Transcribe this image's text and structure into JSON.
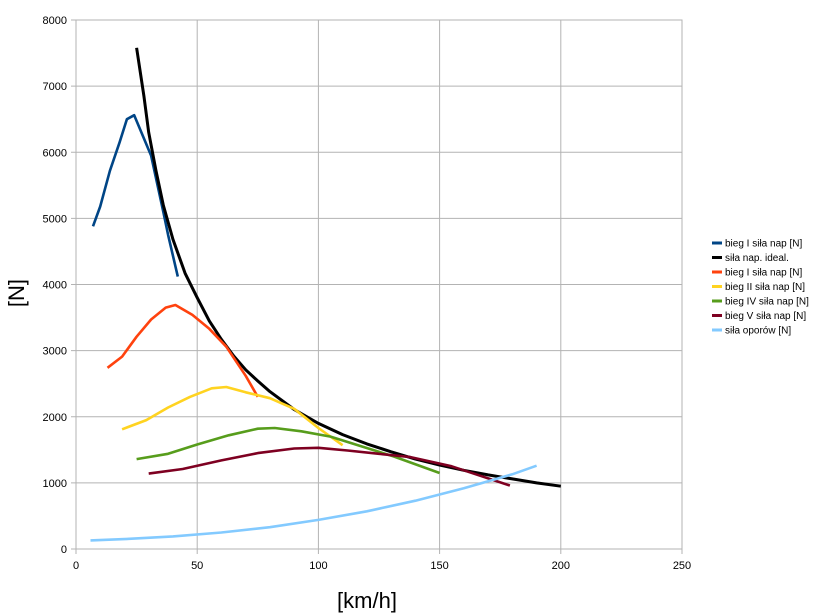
{
  "chart_data": {
    "type": "line",
    "xlabel": "[km/h]",
    "ylabel": "[N]",
    "xlim": [
      0,
      250
    ],
    "ylim": [
      0,
      8000
    ],
    "x_ticks": [
      "0",
      "50",
      "100",
      "150",
      "200",
      "250"
    ],
    "y_ticks": [
      "0",
      "1000",
      "2000",
      "3000",
      "4000",
      "5000",
      "6000",
      "7000",
      "8000"
    ],
    "grid": true,
    "legend_position": "right",
    "series": [
      {
        "name": "bieg I siła nap [N]",
        "color": "#004586",
        "x": [
          7,
          10,
          14,
          18,
          21,
          24,
          31,
          36,
          38,
          42
        ],
        "y": [
          4880,
          5180,
          5720,
          6150,
          6500,
          6560,
          5950,
          5100,
          4750,
          4120
        ]
      },
      {
        "name": "siła nap. ideal.",
        "color": "#000000",
        "x": [
          25,
          28,
          30,
          33,
          36,
          40,
          45,
          50,
          55,
          60,
          65,
          70,
          75,
          80,
          90,
          100,
          110,
          120,
          130,
          140,
          150,
          160,
          170,
          180,
          190,
          200
        ],
        "y": [
          7580,
          6850,
          6300,
          5720,
          5200,
          4680,
          4170,
          3800,
          3450,
          3170,
          2920,
          2710,
          2540,
          2380,
          2110,
          1900,
          1730,
          1590,
          1470,
          1360,
          1270,
          1190,
          1120,
          1060,
          1000,
          950
        ]
      },
      {
        "name": "bieg I siła nap [N]",
        "color": "#ff420e",
        "x": [
          13,
          19,
          25,
          31,
          37,
          41,
          48,
          55,
          62,
          70,
          75
        ],
        "y": [
          2740,
          2910,
          3210,
          3470,
          3650,
          3690,
          3540,
          3330,
          3060,
          2620,
          2300
        ]
      },
      {
        "name": "bieg II siła nap [N]",
        "color": "#ffd320",
        "x": [
          19,
          29,
          38,
          47,
          56,
          62,
          70,
          80,
          90,
          100,
          110
        ],
        "y": [
          1810,
          1950,
          2140,
          2300,
          2430,
          2450,
          2370,
          2280,
          2120,
          1830,
          1570
        ]
      },
      {
        "name": "bieg IV siła nap [N]",
        "color": "#579d1c",
        "x": [
          25,
          38,
          50,
          63,
          75,
          82,
          93,
          105,
          118,
          131,
          150
        ],
        "y": [
          1360,
          1440,
          1580,
          1720,
          1820,
          1830,
          1780,
          1700,
          1550,
          1400,
          1150
        ]
      },
      {
        "name": "bieg V siła nap [N]",
        "color": "#7e0021",
        "x": [
          30,
          44,
          60,
          75,
          90,
          100,
          112,
          125,
          138,
          155,
          179
        ],
        "y": [
          1140,
          1210,
          1340,
          1450,
          1520,
          1530,
          1490,
          1440,
          1390,
          1250,
          960
        ]
      },
      {
        "name": "siła oporów [N]",
        "color": "#83caff",
        "x": [
          6,
          20,
          40,
          60,
          80,
          100,
          120,
          140,
          160,
          180,
          190
        ],
        "y": [
          130,
          150,
          190,
          250,
          330,
          440,
          570,
          730,
          920,
          1130,
          1260
        ]
      }
    ]
  }
}
